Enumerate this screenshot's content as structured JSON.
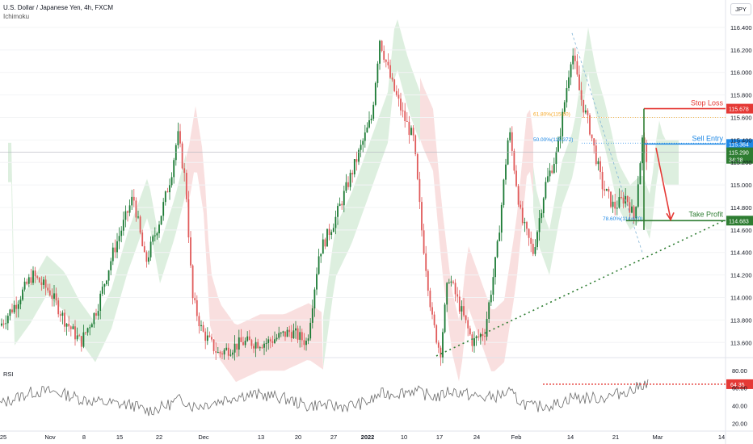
{
  "header": {
    "title": "U.S. Dollar / Japanese Yen, 4h, FXCM",
    "indicator": "Ichimoku",
    "currency": "JPY"
  },
  "colors": {
    "bull": "#26a69a",
    "bull_candle": "#1b7a34",
    "bear": "#e05a5a",
    "stop": "#e53935",
    "entry": "#1e88e5",
    "target": "#2e7d32",
    "cloud_green": "#d7ecd9",
    "cloud_red": "#f8d9d9",
    "fib": "#f5a623",
    "trend": "#2e7d32"
  },
  "price_axis": {
    "ticks": [
      "116.400",
      "116.200",
      "116.000",
      "115.800",
      "115.600",
      "115.400",
      "115.200",
      "115.000",
      "114.800",
      "114.600",
      "114.400",
      "114.200",
      "114.000",
      "113.800",
      "113.600"
    ],
    "range": [
      113.48,
      116.5
    ]
  },
  "time_axis": {
    "ticks": [
      "25",
      "Nov",
      "8",
      "15",
      "22",
      "Dec",
      "13",
      "20",
      "27",
      "2022",
      "10",
      "17",
      "24",
      "Feb",
      "14",
      "21",
      "Mar",
      "14"
    ]
  },
  "annotations": {
    "stop_loss": {
      "label": "Stop Loss",
      "price": 115.678,
      "badge": "115.678"
    },
    "sell_entry": {
      "label": "Sell Entry",
      "price": 115.364,
      "badge": "115.364"
    },
    "take_profit": {
      "label": "Take Profit",
      "price": 114.683,
      "badge": "114.683"
    },
    "current": {
      "price": 115.29,
      "badge": "115.290",
      "countdown": "34:28"
    },
    "fib_618": "61.80%(115.60)",
    "fib_500": "50.00%(115.372)",
    "fib_786": "78.60%(114.670)"
  },
  "rsi": {
    "label": "RSI",
    "ticks": [
      "80.00",
      "60.00",
      "40.00",
      "20.00"
    ],
    "range": [
      15,
      88
    ],
    "level": 64.35,
    "level_badge": "64.35"
  },
  "chart_data": {
    "type": "line",
    "title": "U.S. Dollar / Japanese Yen, 4h, FXCM",
    "x": [
      "25",
      "Nov",
      "8",
      "15",
      "22",
      "Dec",
      "13",
      "20",
      "27",
      "2022",
      "10",
      "17",
      "24",
      "Feb",
      "14",
      "21"
    ],
    "series": [
      {
        "name": "USDJPY",
        "values": [
          113.7,
          114.0,
          114.3,
          114.4,
          115.4,
          113.6,
          113.7,
          113.8,
          114.5,
          116.3,
          115.7,
          114.3,
          113.7,
          115.3,
          116.0,
          115.3
        ]
      }
    ],
    "ylim": [
      113.48,
      116.5
    ],
    "levels": {
      "stop_loss": 115.678,
      "sell_entry": 115.364,
      "take_profit": 114.683
    },
    "rsi": {
      "ylim": [
        15,
        88
      ],
      "level": 64.35
    }
  }
}
